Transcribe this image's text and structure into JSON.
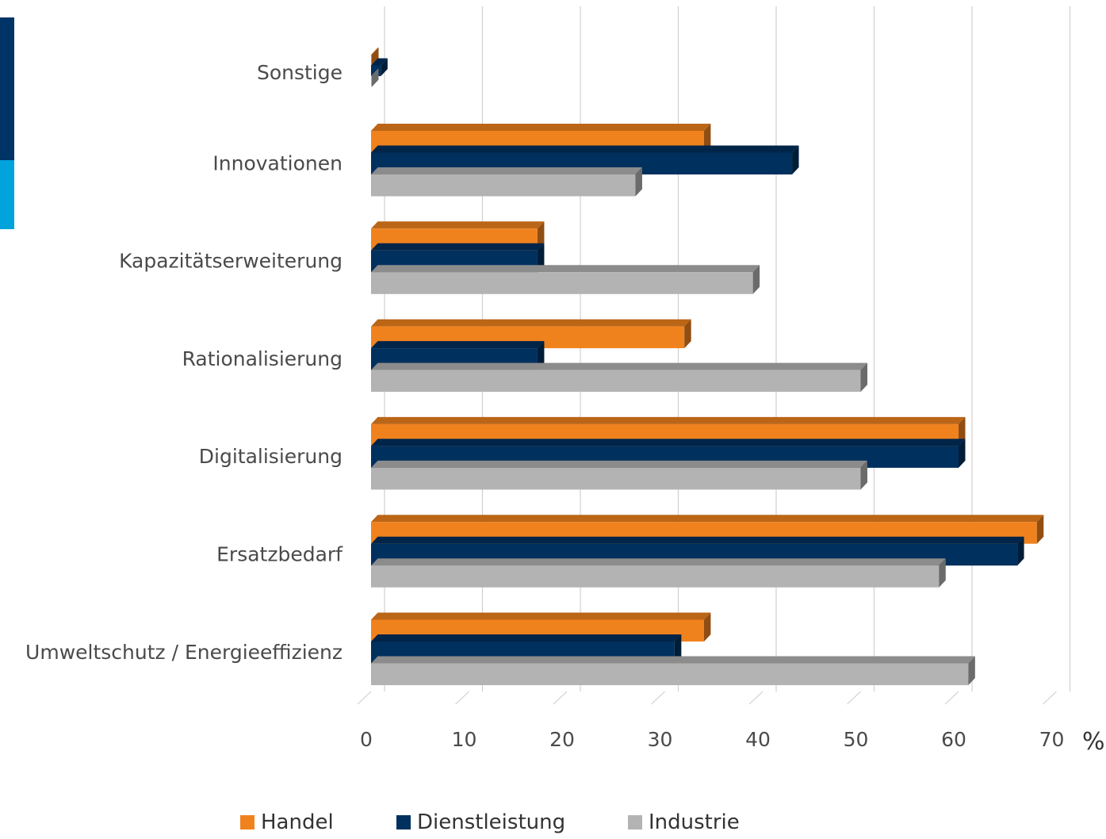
{
  "decor": {
    "accent_colors": [
      "#003466",
      "#00a3dc"
    ]
  },
  "chart_data": {
    "type": "bar",
    "orientation": "horizontal",
    "style": "3d-clustered",
    "categories": [
      "Sonstige",
      "Innovationen",
      "Kapazitätserweiterung",
      "Rationalisierung",
      "Digitalisierung",
      "Ersatzbedarf",
      "Umweltschutz / Energieeffizienz"
    ],
    "series": [
      {
        "name": "Handel",
        "color": "#f0821e",
        "values": [
          0,
          34,
          17,
          32,
          60,
          68,
          34
        ]
      },
      {
        "name": "Dienstleistung",
        "color": "#00305e",
        "values": [
          1,
          43,
          17,
          17,
          60,
          66,
          31
        ]
      },
      {
        "name": "Industrie",
        "color": "#b3b3b3",
        "values": [
          0,
          27,
          39,
          50,
          50,
          58,
          61
        ]
      }
    ],
    "x_ticks": [
      0,
      10,
      20,
      30,
      40,
      50,
      60,
      70
    ],
    "xlim": [
      0,
      70
    ],
    "unit": "%",
    "grid": true,
    "legend_position": "bottom"
  }
}
